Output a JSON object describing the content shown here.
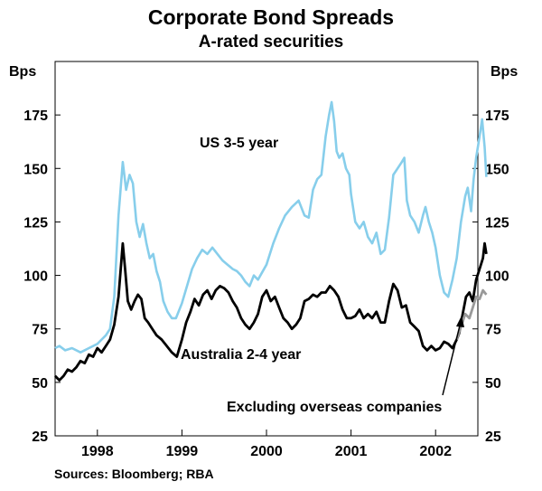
{
  "chart_data": {
    "type": "line",
    "title": "Corporate Bond Spreads",
    "subtitle": "A-rated securities",
    "ylabel_left": "Bps",
    "ylabel_right": "Bps",
    "ylim": [
      25,
      200
    ],
    "yticks": [
      25,
      50,
      75,
      100,
      125,
      150,
      175
    ],
    "xlim": [
      1997.5,
      2002.5
    ],
    "xticks": [
      {
        "label": "1998",
        "center": 1998.0
      },
      {
        "label": "1999",
        "center": 1999.0
      },
      {
        "label": "2000",
        "center": 2000.0
      },
      {
        "label": "2001",
        "center": 2001.0
      },
      {
        "label": "2002",
        "center": 2002.0
      }
    ],
    "year_boundaries": [
      1998,
      1999,
      2000,
      2001,
      2002
    ],
    "series": [
      {
        "name": "US 3-5 year",
        "color": "#87ceeb",
        "points": [
          [
            1997.5,
            66
          ],
          [
            1997.55,
            67
          ],
          [
            1997.62,
            65
          ],
          [
            1997.7,
            66
          ],
          [
            1997.8,
            64
          ],
          [
            1997.9,
            66
          ],
          [
            1998.0,
            68
          ],
          [
            1998.05,
            70
          ],
          [
            1998.1,
            72
          ],
          [
            1998.15,
            75
          ],
          [
            1998.2,
            90
          ],
          [
            1998.25,
            128
          ],
          [
            1998.3,
            153
          ],
          [
            1998.34,
            140
          ],
          [
            1998.38,
            147
          ],
          [
            1998.42,
            143
          ],
          [
            1998.46,
            125
          ],
          [
            1998.5,
            118
          ],
          [
            1998.54,
            124
          ],
          [
            1998.58,
            115
          ],
          [
            1998.62,
            108
          ],
          [
            1998.66,
            110
          ],
          [
            1998.7,
            102
          ],
          [
            1998.74,
            97
          ],
          [
            1998.78,
            88
          ],
          [
            1998.83,
            83
          ],
          [
            1998.88,
            80
          ],
          [
            1998.93,
            80
          ],
          [
            1999.0,
            87
          ],
          [
            1999.06,
            95
          ],
          [
            1999.12,
            103
          ],
          [
            1999.18,
            108
          ],
          [
            1999.24,
            112
          ],
          [
            1999.3,
            110
          ],
          [
            1999.36,
            113
          ],
          [
            1999.42,
            110
          ],
          [
            1999.48,
            107
          ],
          [
            1999.54,
            105
          ],
          [
            1999.6,
            103
          ],
          [
            1999.65,
            102
          ],
          [
            1999.7,
            100
          ],
          [
            1999.75,
            97
          ],
          [
            1999.8,
            95
          ],
          [
            1999.85,
            100
          ],
          [
            1999.9,
            98
          ],
          [
            2000.0,
            105
          ],
          [
            2000.08,
            115
          ],
          [
            2000.15,
            122
          ],
          [
            2000.22,
            128
          ],
          [
            2000.3,
            132
          ],
          [
            2000.38,
            135
          ],
          [
            2000.45,
            128
          ],
          [
            2000.5,
            127
          ],
          [
            2000.55,
            140
          ],
          [
            2000.6,
            145
          ],
          [
            2000.65,
            147
          ],
          [
            2000.7,
            165
          ],
          [
            2000.74,
            175
          ],
          [
            2000.77,
            181
          ],
          [
            2000.8,
            172
          ],
          [
            2000.83,
            158
          ],
          [
            2000.86,
            155
          ],
          [
            2000.9,
            157
          ],
          [
            2000.94,
            150
          ],
          [
            2000.98,
            147
          ],
          [
            2001.0,
            138
          ],
          [
            2001.05,
            125
          ],
          [
            2001.1,
            122
          ],
          [
            2001.15,
            125
          ],
          [
            2001.2,
            118
          ],
          [
            2001.25,
            115
          ],
          [
            2001.3,
            120
          ],
          [
            2001.35,
            110
          ],
          [
            2001.4,
            112
          ],
          [
            2001.45,
            127
          ],
          [
            2001.5,
            147
          ],
          [
            2001.55,
            150
          ],
          [
            2001.6,
            153
          ],
          [
            2001.63,
            155
          ],
          [
            2001.66,
            135
          ],
          [
            2001.7,
            128
          ],
          [
            2001.75,
            125
          ],
          [
            2001.8,
            120
          ],
          [
            2001.85,
            128
          ],
          [
            2001.88,
            132
          ],
          [
            2001.92,
            125
          ],
          [
            2001.96,
            120
          ],
          [
            2002.0,
            113
          ],
          [
            2002.05,
            100
          ],
          [
            2002.1,
            92
          ],
          [
            2002.15,
            90
          ],
          [
            2002.2,
            98
          ],
          [
            2002.25,
            108
          ],
          [
            2002.3,
            125
          ],
          [
            2002.35,
            137
          ],
          [
            2002.38,
            141
          ],
          [
            2002.42,
            130
          ],
          [
            2002.45,
            145
          ],
          [
            2002.48,
            155
          ],
          [
            2002.52,
            165
          ],
          [
            2002.55,
            173
          ],
          [
            2002.58,
            160
          ],
          [
            2002.6,
            146
          ]
        ]
      },
      {
        "name": "Australia 2-4 year",
        "color": "#000000",
        "points": [
          [
            1997.5,
            53
          ],
          [
            1997.55,
            51
          ],
          [
            1997.6,
            53
          ],
          [
            1997.65,
            56
          ],
          [
            1997.7,
            55
          ],
          [
            1997.75,
            57
          ],
          [
            1997.8,
            60
          ],
          [
            1997.85,
            59
          ],
          [
            1997.9,
            63
          ],
          [
            1997.95,
            62
          ],
          [
            1998.0,
            66
          ],
          [
            1998.05,
            64
          ],
          [
            1998.1,
            67
          ],
          [
            1998.15,
            70
          ],
          [
            1998.2,
            77
          ],
          [
            1998.25,
            90
          ],
          [
            1998.3,
            115
          ],
          [
            1998.33,
            102
          ],
          [
            1998.36,
            88
          ],
          [
            1998.4,
            84
          ],
          [
            1998.44,
            88
          ],
          [
            1998.48,
            91
          ],
          [
            1998.52,
            89
          ],
          [
            1998.56,
            80
          ],
          [
            1998.6,
            78
          ],
          [
            1998.65,
            75
          ],
          [
            1998.7,
            72
          ],
          [
            1998.76,
            70
          ],
          [
            1998.82,
            67
          ],
          [
            1998.88,
            64
          ],
          [
            1998.94,
            62
          ],
          [
            1999.0,
            70
          ],
          [
            1999.05,
            78
          ],
          [
            1999.1,
            83
          ],
          [
            1999.15,
            89
          ],
          [
            1999.2,
            86
          ],
          [
            1999.25,
            91
          ],
          [
            1999.3,
            93
          ],
          [
            1999.35,
            89
          ],
          [
            1999.4,
            93
          ],
          [
            1999.45,
            95
          ],
          [
            1999.5,
            94
          ],
          [
            1999.55,
            92
          ],
          [
            1999.6,
            88
          ],
          [
            1999.65,
            85
          ],
          [
            1999.7,
            80
          ],
          [
            1999.75,
            77
          ],
          [
            1999.8,
            75
          ],
          [
            1999.85,
            78
          ],
          [
            1999.9,
            82
          ],
          [
            1999.95,
            90
          ],
          [
            2000.0,
            93
          ],
          [
            2000.05,
            88
          ],
          [
            2000.1,
            90
          ],
          [
            2000.15,
            85
          ],
          [
            2000.2,
            80
          ],
          [
            2000.25,
            78
          ],
          [
            2000.3,
            75
          ],
          [
            2000.35,
            77
          ],
          [
            2000.4,
            80
          ],
          [
            2000.45,
            88
          ],
          [
            2000.5,
            89
          ],
          [
            2000.55,
            91
          ],
          [
            2000.6,
            90
          ],
          [
            2000.65,
            92
          ],
          [
            2000.7,
            92
          ],
          [
            2000.75,
            95
          ],
          [
            2000.8,
            93
          ],
          [
            2000.85,
            90
          ],
          [
            2000.9,
            84
          ],
          [
            2000.95,
            80
          ],
          [
            2001.0,
            80
          ],
          [
            2001.05,
            81
          ],
          [
            2001.1,
            84
          ],
          [
            2001.15,
            80
          ],
          [
            2001.2,
            82
          ],
          [
            2001.25,
            80
          ],
          [
            2001.3,
            83
          ],
          [
            2001.35,
            78
          ],
          [
            2001.4,
            78
          ],
          [
            2001.45,
            88
          ],
          [
            2001.5,
            96
          ],
          [
            2001.55,
            93
          ],
          [
            2001.6,
            85
          ],
          [
            2001.65,
            86
          ],
          [
            2001.7,
            78
          ],
          [
            2001.75,
            76
          ],
          [
            2001.8,
            74
          ],
          [
            2001.85,
            67
          ],
          [
            2001.9,
            65
          ],
          [
            2001.95,
            67
          ],
          [
            2002.0,
            65
          ],
          [
            2002.05,
            66
          ],
          [
            2002.1,
            69
          ],
          [
            2002.15,
            68
          ],
          [
            2002.2,
            66
          ],
          [
            2002.25,
            70
          ],
          [
            2002.28,
            73
          ],
          [
            2002.32,
            82
          ],
          [
            2002.36,
            90
          ],
          [
            2002.4,
            92
          ],
          [
            2002.44,
            88
          ],
          [
            2002.48,
            98
          ],
          [
            2002.52,
            103
          ],
          [
            2002.56,
            108
          ],
          [
            2002.58,
            115
          ],
          [
            2002.6,
            110
          ]
        ]
      },
      {
        "name": "Excluding overseas companies",
        "color": "#999999",
        "points": [
          [
            2002.25,
            70
          ],
          [
            2002.3,
            76
          ],
          [
            2002.35,
            82
          ],
          [
            2002.4,
            80
          ],
          [
            2002.44,
            85
          ],
          [
            2002.48,
            90
          ],
          [
            2002.52,
            89
          ],
          [
            2002.56,
            93
          ],
          [
            2002.6,
            91
          ]
        ]
      }
    ],
    "annotations": [
      {
        "text": "US 3-5 year",
        "series": "US 3-5 year"
      },
      {
        "text": "Australia 2-4 year",
        "series": "Australia 2-4 year"
      },
      {
        "text": "Excluding overseas companies",
        "series": "Excluding overseas companies",
        "arrow": true
      }
    ],
    "source": "Sources: Bloomberg; RBA"
  }
}
